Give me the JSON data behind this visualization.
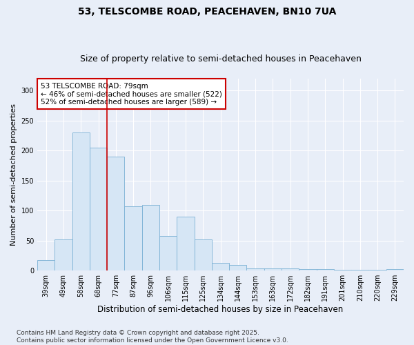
{
  "title": "53, TELSCOMBE ROAD, PEACEHAVEN, BN10 7UA",
  "subtitle": "Size of property relative to semi-detached houses in Peacehaven",
  "xlabel": "Distribution of semi-detached houses by size in Peacehaven",
  "ylabel": "Number of semi-detached properties",
  "categories": [
    "39sqm",
    "49sqm",
    "58sqm",
    "68sqm",
    "77sqm",
    "87sqm",
    "96sqm",
    "106sqm",
    "115sqm",
    "125sqm",
    "134sqm",
    "144sqm",
    "153sqm",
    "163sqm",
    "172sqm",
    "182sqm",
    "191sqm",
    "201sqm",
    "210sqm",
    "220sqm",
    "229sqm"
  ],
  "values": [
    17,
    52,
    230,
    205,
    190,
    107,
    110,
    58,
    90,
    52,
    13,
    10,
    4,
    4,
    4,
    3,
    2,
    1,
    1,
    1,
    2
  ],
  "bar_color": "#d6e6f5",
  "bar_edge_color": "#7ab0d4",
  "vline_color": "#cc0000",
  "vline_pos": 3.5,
  "annotation_text": "53 TELSCOMBE ROAD: 79sqm\n← 46% of semi-detached houses are smaller (522)\n52% of semi-detached houses are larger (589) →",
  "annotation_box_facecolor": "#ffffff",
  "annotation_box_edgecolor": "#cc0000",
  "ylim": [
    0,
    320
  ],
  "yticks": [
    0,
    50,
    100,
    150,
    200,
    250,
    300
  ],
  "grid_color": "#c8d8e8",
  "bg_color": "#e8eef8",
  "title_fontsize": 10,
  "subtitle_fontsize": 9,
  "xlabel_fontsize": 8.5,
  "ylabel_fontsize": 8,
  "tick_fontsize": 7,
  "annot_fontsize": 7.5,
  "footer_fontsize": 6.5,
  "footer": "Contains HM Land Registry data © Crown copyright and database right 2025.\nContains public sector information licensed under the Open Government Licence v3.0."
}
